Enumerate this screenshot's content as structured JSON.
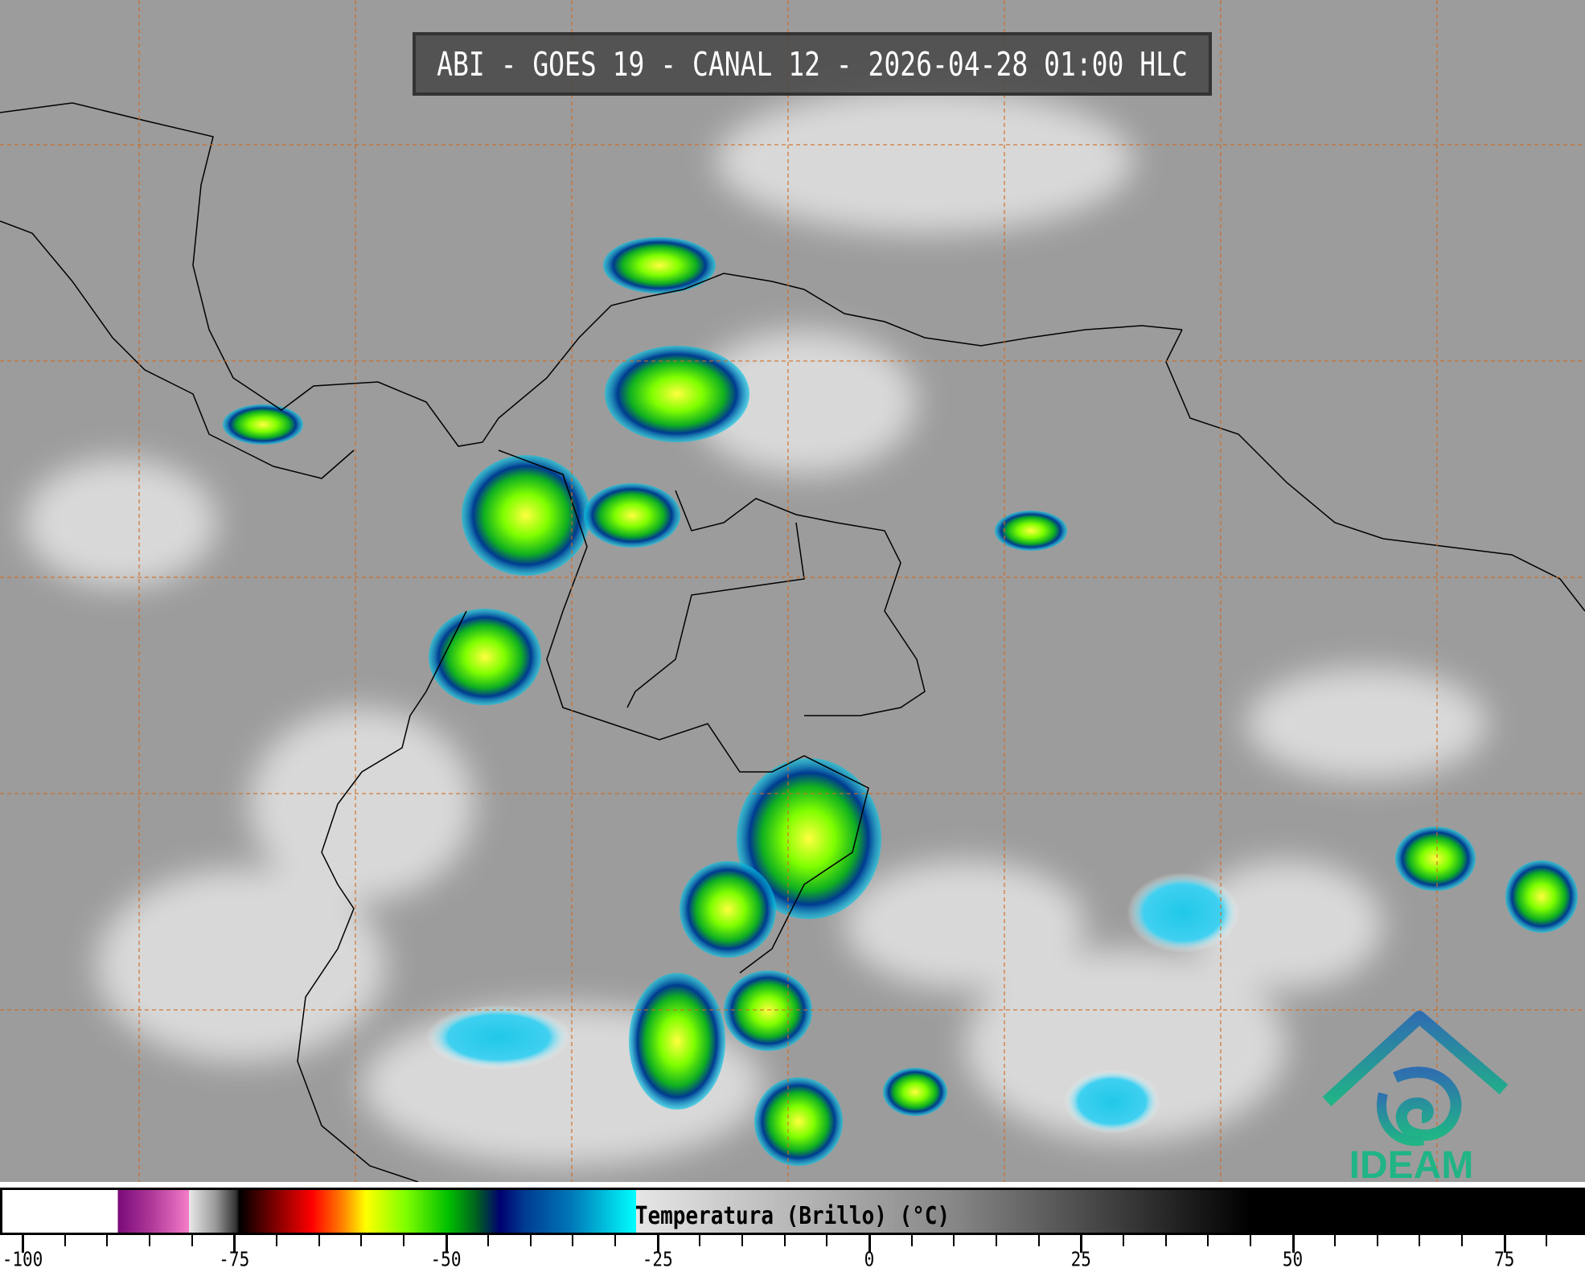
{
  "title": "ABI - GOES 19 - CANAL 12 - 2026-04-28 01:00 HLC",
  "colorbar": {
    "label": "Temperatura (Brillo) (°C)",
    "ticks": [
      "-100",
      "-75",
      "-50",
      "-25",
      "0",
      "25",
      "50",
      "75"
    ],
    "range": [
      -100,
      75
    ],
    "colors": {
      "cold_white": "#ffffff",
      "purple": "#b03a9a",
      "red": "#ff0000",
      "yellow": "#ffff00",
      "green": "#00c000",
      "navy": "#000070",
      "cyan": "#00ffff",
      "warm_black": "#000000"
    }
  },
  "logo": {
    "text": "IDEAM",
    "color": "#20b486"
  },
  "map": {
    "grid_color": "#d2691e",
    "background_gray": "#9c9c9c"
  }
}
